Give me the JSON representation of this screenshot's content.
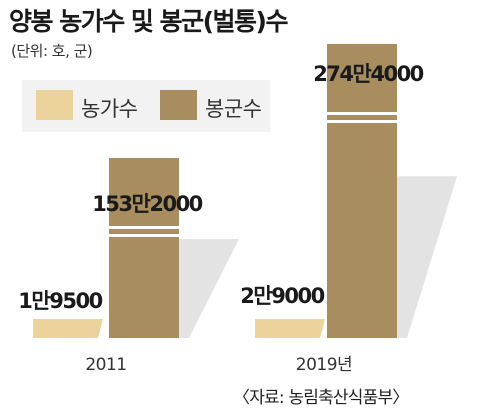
{
  "header": {
    "title": "양봉 농가수 및 봉군(벌통)수",
    "unit": "(단위: 호, 군)"
  },
  "source": "〈자료: 농림축산식품부〉",
  "colors": {
    "farms": "#ecd29b",
    "colonies": "#a88d5e",
    "shadow": "#e3e3e3",
    "cut_stripe": "#ffffff"
  },
  "chart_data": {
    "type": "bar",
    "categories": [
      "2011",
      "2019년"
    ],
    "series": [
      {
        "name": "농가수",
        "values": [
          19500,
          29000
        ],
        "labels": [
          "1만9500",
          "2만9000"
        ]
      },
      {
        "name": "봉군수",
        "values": [
          1532000,
          2744000
        ],
        "labels": [
          "153만2000",
          "274만4000"
        ]
      }
    ],
    "broken_axis": true,
    "legend": "top-left",
    "grid": false
  }
}
